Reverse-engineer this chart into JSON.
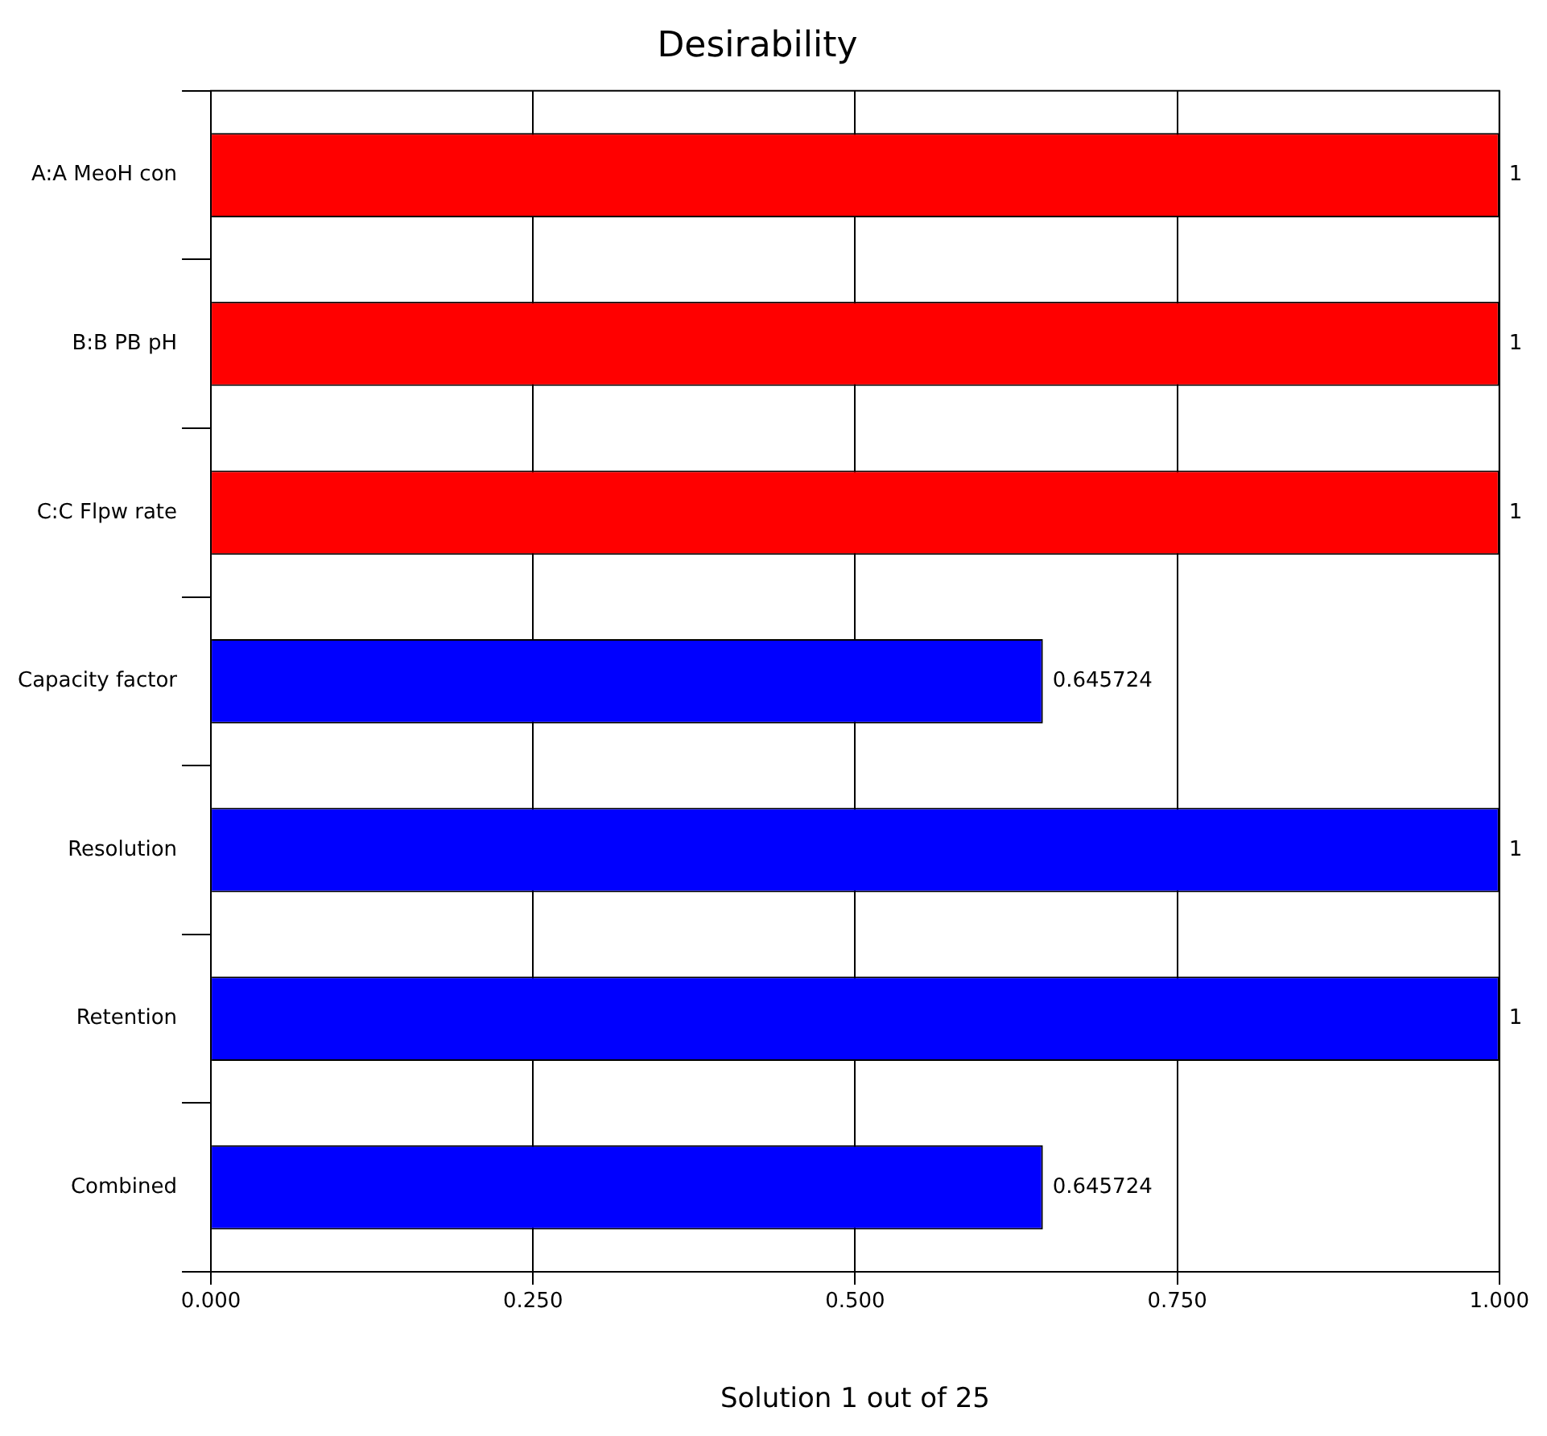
{
  "chart_data": {
    "type": "bar",
    "orientation": "horizontal",
    "title": "Desirability",
    "xlabel": "Solution 1 out of 25",
    "categories": [
      "A:A MeoH con",
      "B:B PB pH",
      "C:C Flpw rate",
      "Capacity factor",
      "Resolution",
      "Retention",
      "Combined"
    ],
    "values": [
      1,
      1,
      1,
      0.645724,
      1,
      1,
      0.645724
    ],
    "colors": [
      "#ff0000",
      "#ff0000",
      "#ff0000",
      "#0000ff",
      "#0000ff",
      "#0000ff",
      "#0000ff"
    ],
    "xlim": [
      0,
      1
    ],
    "xticks": [
      {
        "value": 0,
        "label": "0.000"
      },
      {
        "value": 0.25,
        "label": "0.250"
      },
      {
        "value": 0.5,
        "label": "0.500"
      },
      {
        "value": 0.75,
        "label": "0.750"
      },
      {
        "value": 1,
        "label": "1.000"
      }
    ],
    "grid": "x",
    "data_labels": true
  }
}
